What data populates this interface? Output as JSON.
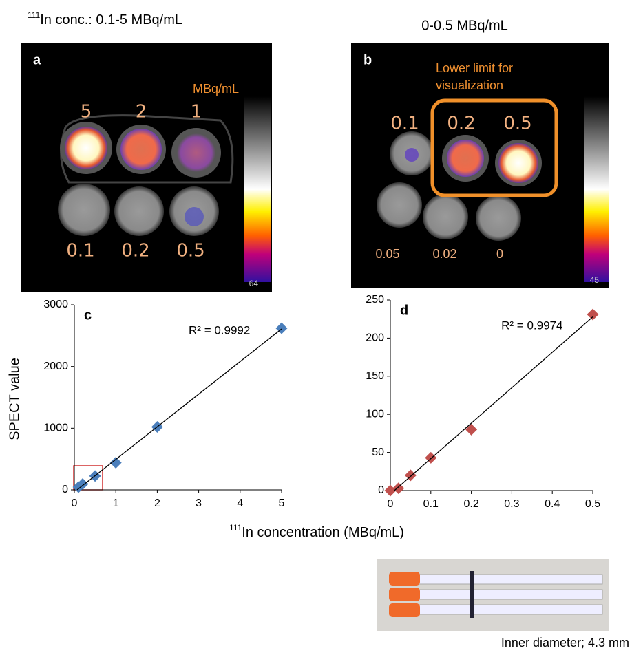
{
  "header_left": {
    "sup": "111",
    "text": "In conc.: 0.1-5 MBq/mL"
  },
  "header_right": "0-0.5 MBq/mL",
  "panel_a": {
    "letter": "a",
    "unit": "MBq/mL",
    "labels": [
      "5",
      "2",
      "1",
      "0.1",
      "0.2",
      "0.5"
    ],
    "corner": "64"
  },
  "panel_b": {
    "letter": "b",
    "note": [
      "Lower limit for",
      "visualization"
    ],
    "labels": [
      "0.1",
      "0.2",
      "0.5",
      "0.05",
      "0.02",
      "0"
    ],
    "corner": "45"
  },
  "y_label": "SPECT value",
  "x_label": {
    "sup": "111",
    "text": "In concentration (MBq/mL)"
  },
  "photo_caption": "Inner diameter; 4.3 mm",
  "chart_data": [
    {
      "type": "scatter",
      "panel": "c",
      "annotation": "R² = 0.9992",
      "color": "#4a7ebb",
      "x": [
        0.1,
        0.2,
        0.5,
        1,
        2,
        5
      ],
      "values": [
        45,
        95,
        225,
        440,
        1020,
        2620
      ],
      "xlim": [
        0,
        5
      ],
      "xticks": [
        0,
        1,
        2,
        3,
        4,
        5
      ],
      "ylim": [
        0,
        3000
      ],
      "yticks": [
        0,
        1000,
        2000,
        3000
      ]
    },
    {
      "type": "scatter",
      "panel": "d",
      "annotation": "R² = 0.9974",
      "color": "#c0504d",
      "x": [
        0,
        0.02,
        0.05,
        0.1,
        0.2,
        0.5
      ],
      "values": [
        0,
        3,
        20,
        43,
        80,
        231
      ],
      "xlim": [
        0,
        0.5
      ],
      "xticks": [
        0,
        0.1,
        0.2,
        0.3,
        0.4,
        0.5
      ],
      "ylim": [
        0,
        250
      ],
      "yticks": [
        0,
        50,
        100,
        150,
        200,
        250
      ]
    }
  ]
}
